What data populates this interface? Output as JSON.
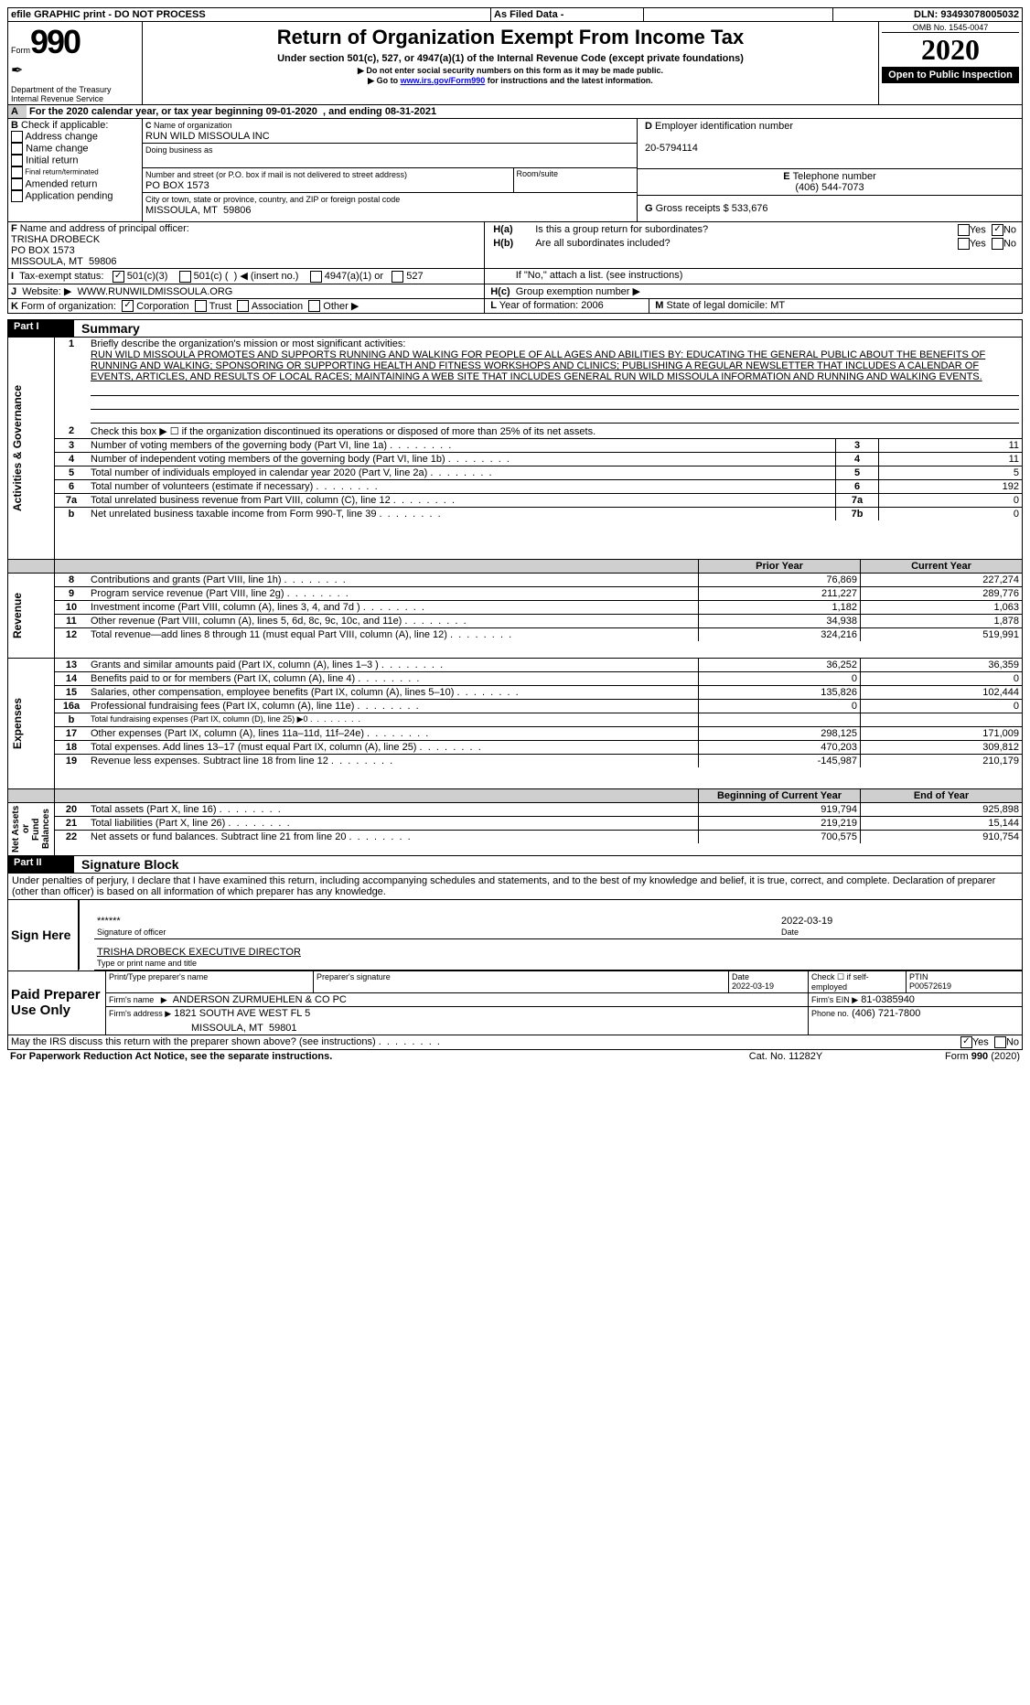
{
  "topbar": {
    "efile": "efile GRAPHIC print - DO NOT PROCESS",
    "asfiled": "As Filed Data -",
    "dln_l": "DLN:",
    "dln": "93493078005032"
  },
  "hdr": {
    "form": "Form",
    "num": "990",
    "title": "Return of Organization Exempt From Income Tax",
    "sub": "Under section 501(c), 527, or 4947(a)(1) of the Internal Revenue Code (except private foundations)",
    "warn": "▶ Do not enter social security numbers on this form as it may be made public.",
    "go": "▶ Go to ",
    "url": "www.irs.gov/Form990",
    "go2": " for instructions and the latest information.",
    "dept": "Department of the Treasury\nInternal Revenue Service",
    "omb": "OMB No. 1545-0047",
    "yr": "2020",
    "open": "Open to Public Inspection"
  },
  "A": {
    "txt": "For the 2020 calendar year, or tax year beginning 09-01-2020  , and ending 08-31-2021"
  },
  "B": {
    "l": "Check if applicable:",
    "i": [
      "Address change",
      "Name change",
      "Initial return",
      "Final return/terminated",
      "Amended return",
      "Application pending"
    ]
  },
  "C": {
    "l": "Name of organization",
    "name": "RUN WILD MISSOULA INC",
    "dba": "Doing business as",
    "addr_l": "Number and street (or P.O. box if mail is not delivered to street address)",
    "addr": "PO BOX 1573",
    "room": "Room/suite",
    "city_l": "City or town, state or province, country, and ZIP or foreign postal code",
    "city": "MISSOULA, MT  59806"
  },
  "D": {
    "l": "Employer identification number",
    "v": "20-5794114"
  },
  "E": {
    "l": "Telephone number",
    "v": "(406) 544-7073"
  },
  "G": {
    "l": "Gross receipts $",
    "v": "533,676"
  },
  "F": {
    "l": "Name and address of principal officer:",
    "v": "TRISHA DROBECK\nPO BOX 1573\nMISSOULA, MT  59806"
  },
  "H": {
    "a": "Is this a group return for subordinates?",
    "b": "Are all subordinates included?",
    "note": "If \"No,\" attach a list. (see instructions)",
    "c": "Group exemption number ▶",
    "yes": "Yes",
    "no": "No"
  },
  "I": {
    "l": "Tax-exempt status:",
    "o1": "501(c)(3)",
    "o2": "501(c) (  ) ◀ (insert no.)",
    "o3": "4947(a)(1) or",
    "o4": "527"
  },
  "J": {
    "l": "Website: ▶",
    "v": "WWW.RUNWILDMISSOULA.ORG"
  },
  "K": {
    "l": "Form of organization:",
    "o": [
      "Corporation",
      "Trust",
      "Association",
      "Other ▶"
    ]
  },
  "L": {
    "l": "Year of formation:",
    "v": "2006"
  },
  "M": {
    "l": "State of legal domicile:",
    "v": "MT"
  },
  "p1": {
    "title": "Part I",
    "sub": "Summary"
  },
  "p1_1": {
    "l": "Briefly describe the organization's mission or most significant activities:",
    "txt": "RUN WILD MISSOULA PROMOTES AND SUPPORTS RUNNING AND WALKING FOR PEOPLE OF ALL AGES AND ABILITIES BY: EDUCATING THE GENERAL PUBLIC ABOUT THE BENEFITS OF RUNNING AND WALKING; SPONSORING OR SUPPORTING HEALTH AND FITNESS WORKSHOPS AND CLINICS; PUBLISHING A REGULAR NEWSLETTER THAT INCLUDES A CALENDAR OF EVENTS, ARTICLES, AND RESULTS OF LOCAL RACES; MAINTAINING A WEB SITE THAT INCLUDES GENERAL RUN WILD MISSOULA INFORMATION AND RUNNING AND WALKING EVENTS."
  },
  "rows": {
    "2": {
      "t": "Check this box ▶ ☐ if the organization discontinued its operations or disposed of more than 25% of its net assets."
    },
    "3": {
      "t": "Number of voting members of the governing body (Part VI, line 1a)",
      "n": "3",
      "v": "11"
    },
    "4": {
      "t": "Number of independent voting members of the governing body (Part VI, line 1b)",
      "n": "4",
      "v": "11"
    },
    "5": {
      "t": "Total number of individuals employed in calendar year 2020 (Part V, line 2a)",
      "n": "5",
      "v": "5"
    },
    "6": {
      "t": "Total number of volunteers (estimate if necessary)",
      "n": "6",
      "v": "192"
    },
    "7a": {
      "t": "Total unrelated business revenue from Part VIII, column (C), line 12",
      "n": "7a",
      "v": "0"
    },
    "7b": {
      "t": "Net unrelated business taxable income from Form 990-T, line 39",
      "n": "7b",
      "v": "0"
    }
  },
  "colh": {
    "py": "Prior Year",
    "cy": "Current Year"
  },
  "rev": [
    {
      "n": "8",
      "t": "Contributions and grants (Part VIII, line 1h)",
      "p": "76,869",
      "c": "227,274"
    },
    {
      "n": "9",
      "t": "Program service revenue (Part VIII, line 2g)",
      "p": "211,227",
      "c": "289,776"
    },
    {
      "n": "10",
      "t": "Investment income (Part VIII, column (A), lines 3, 4, and 7d )",
      "p": "1,182",
      "c": "1,063"
    },
    {
      "n": "11",
      "t": "Other revenue (Part VIII, column (A), lines 5, 6d, 8c, 9c, 10c, and 11e)",
      "p": "34,938",
      "c": "1,878"
    },
    {
      "n": "12",
      "t": "Total revenue—add lines 8 through 11 (must equal Part VIII, column (A), line 12)",
      "p": "324,216",
      "c": "519,991"
    }
  ],
  "exp": [
    {
      "n": "13",
      "t": "Grants and similar amounts paid (Part IX, column (A), lines 1–3 )",
      "p": "36,252",
      "c": "36,359"
    },
    {
      "n": "14",
      "t": "Benefits paid to or for members (Part IX, column (A), line 4)",
      "p": "0",
      "c": "0"
    },
    {
      "n": "15",
      "t": "Salaries, other compensation, employee benefits (Part IX, column (A), lines 5–10)",
      "p": "135,826",
      "c": "102,444"
    },
    {
      "n": "16a",
      "t": "Professional fundraising fees (Part IX, column (A), line 11e)",
      "p": "0",
      "c": "0"
    },
    {
      "n": "b",
      "t": "Total fundraising expenses (Part IX, column (D), line 25) ▶0",
      "p": "",
      "c": ""
    },
    {
      "n": "17",
      "t": "Other expenses (Part IX, column (A), lines 11a–11d, 11f–24e)",
      "p": "298,125",
      "c": "171,009"
    },
    {
      "n": "18",
      "t": "Total expenses. Add lines 13–17 (must equal Part IX, column (A), line 25)",
      "p": "470,203",
      "c": "309,812"
    },
    {
      "n": "19",
      "t": "Revenue less expenses. Subtract line 18 from line 12",
      "p": "-145,987",
      "c": "210,179"
    }
  ],
  "colh2": {
    "py": "Beginning of Current Year",
    "cy": "End of Year"
  },
  "na": [
    {
      "n": "20",
      "t": "Total assets (Part X, line 16)",
      "p": "919,794",
      "c": "925,898"
    },
    {
      "n": "21",
      "t": "Total liabilities (Part X, line 26)",
      "p": "219,219",
      "c": "15,144"
    },
    {
      "n": "22",
      "t": "Net assets or fund balances. Subtract line 21 from line 20",
      "p": "700,575",
      "c": "910,754"
    }
  ],
  "p2": {
    "title": "Part II",
    "sub": "Signature Block"
  },
  "perj": "Under penalties of perjury, I declare that I have examined this return, including accompanying schedules and statements, and to the best of my knowledge and belief, it is true, correct, and complete. Declaration of preparer (other than officer) is based on all information of which preparer has any knowledge.",
  "sign": {
    "l": "Sign Here",
    "stars": "******",
    "date": "2022-03-19",
    "sig_l": "Signature of officer",
    "date_l": "Date",
    "name": "TRISHA DROBECK EXECUTIVE DIRECTOR",
    "name_l": "Type or print name and title"
  },
  "prep": {
    "l": "Paid Preparer Use Only",
    "pn_l": "Print/Type preparer's name",
    "ps_l": "Preparer's signature",
    "d_l": "Date",
    "d": "2022-03-19",
    "se": "Check ☐ if self-employed",
    "ptin_l": "PTIN",
    "ptin": "P00572619",
    "fn_l": "Firm's name   ▶",
    "fn": "ANDERSON ZURMUEHLEN & CO PC",
    "ein_l": "Firm's EIN ▶",
    "ein": "81-0385940",
    "fa_l": "Firm's address ▶",
    "fa": "1821 SOUTH AVE WEST FL 5",
    "fa2": "MISSOULA, MT  59801",
    "ph_l": "Phone no.",
    "ph": "(406) 721-7800"
  },
  "foot": {
    "irs": "May the IRS discuss this return with the preparer shown above? (see instructions)",
    "yes": "Yes",
    "no": "No",
    "pra": "For Paperwork Reduction Act Notice, see the separate instructions.",
    "cat": "Cat. No. 11282Y",
    "form": "Form 990 (2020)"
  },
  "side": {
    "ag": "Activities & Governance",
    "r": "Revenue",
    "e": "Expenses",
    "na": "Net Assets or\nFund Balances"
  }
}
